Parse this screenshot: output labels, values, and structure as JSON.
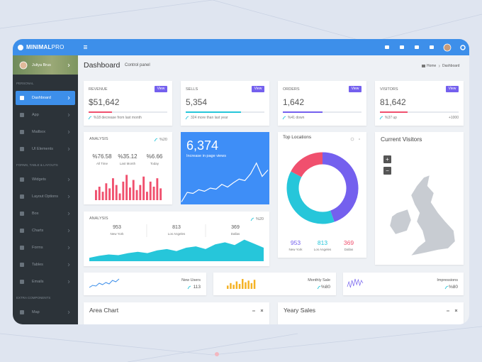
{
  "topbar": {
    "brand_bold": "MINIMAL",
    "brand_light": "PRO"
  },
  "sidebar": {
    "user": "Juliya Brus",
    "sections": [
      {
        "title": "PERSONAL",
        "items": [
          "Dashboard",
          "App",
          "Mailbox",
          "UI Elements"
        ]
      },
      {
        "title": "FORMS, TABLE & LAYOUTS",
        "items": [
          "Widgets",
          "Layout Options",
          "Box",
          "Charts",
          "Forms",
          "Tables",
          "Emails"
        ]
      },
      {
        "title": "EXTRA COMPONENTS",
        "items": [
          "Map"
        ]
      }
    ]
  },
  "header": {
    "title": "Dashboard",
    "subtitle": "Control panel",
    "breadcrumb": [
      "Home",
      "Dashboard"
    ]
  },
  "stats": [
    {
      "label": "REVENUE",
      "button": "View",
      "value": "$51,642",
      "progress": 30,
      "color": "#f0506e",
      "note": "%18 decrease from last month"
    },
    {
      "label": "SELLS",
      "button": "View",
      "value": "5,354",
      "progress": 70,
      "color": "#26c6da",
      "note": "324 more than last year"
    },
    {
      "label": "ORDERS",
      "button": "View",
      "value": "1,642",
      "progress": 50,
      "color": "#7460ee",
      "note": "%41 down"
    },
    {
      "label": "VISITORS",
      "button": "View",
      "value": "81,642",
      "progress": 35,
      "color": "#f0506e",
      "note": "%37 up",
      "note_right": "+1000"
    }
  ],
  "analysis": {
    "title": "ANALYSIS",
    "change": "%20",
    "metrics": [
      {
        "value": "%76.58",
        "label": "All Time"
      },
      {
        "value": "%35.12",
        "label": "Last Month"
      },
      {
        "value": "%6.66",
        "label": "Today"
      }
    ],
    "bars": [
      12,
      16,
      10,
      20,
      14,
      26,
      18,
      8,
      22,
      30,
      15,
      24,
      12,
      18,
      28,
      10,
      22,
      16,
      26,
      14
    ]
  },
  "page_views": {
    "value": "6,374",
    "label": "Increase in page views",
    "line": [
      2,
      20,
      18,
      25,
      22,
      28,
      26,
      35,
      30,
      38,
      45,
      42,
      55,
      75,
      50,
      62
    ]
  },
  "top_locations": {
    "title": "Top Locations",
    "cities": [
      {
        "value": 953,
        "label": "New York",
        "color": "#7460ee"
      },
      {
        "value": 813,
        "label": "Los Angeles",
        "color": "#26c6da"
      },
      {
        "value": 369,
        "label": "Dallas",
        "color": "#f0506e"
      }
    ]
  },
  "current_visitors": {
    "title": "Current Visitors",
    "zoom": [
      "+",
      "−"
    ]
  },
  "analysis2": {
    "title": "ANALYSIS",
    "change": "%20",
    "cities": [
      {
        "value": 953,
        "label": "New York"
      },
      {
        "value": 813,
        "label": "Los Angeles"
      },
      {
        "value": 369,
        "label": "Dallas"
      }
    ],
    "area": [
      5,
      8,
      10,
      9,
      12,
      14,
      12,
      16,
      18,
      15,
      20,
      22,
      18,
      25,
      28,
      24,
      32,
      26,
      20
    ]
  },
  "mini": [
    {
      "label": "New Users",
      "value": "113",
      "type": "line",
      "color": "#3d8fea",
      "series": [
        2,
        5,
        4,
        8,
        6,
        9,
        7,
        12,
        10,
        14
      ]
    },
    {
      "label": "Monthly Sale",
      "value": "%80",
      "type": "bar",
      "color": "#f5b225",
      "series": [
        4,
        7,
        5,
        9,
        6,
        12,
        8,
        10,
        7,
        11
      ]
    },
    {
      "label": "Impressions",
      "value": "%80",
      "type": "line",
      "color": "#7460ee",
      "series": [
        3,
        10,
        2,
        12,
        4,
        14,
        6,
        13,
        5,
        12,
        8
      ]
    }
  ],
  "bottom": [
    "Area Chart",
    "Yeary Sales"
  ]
}
